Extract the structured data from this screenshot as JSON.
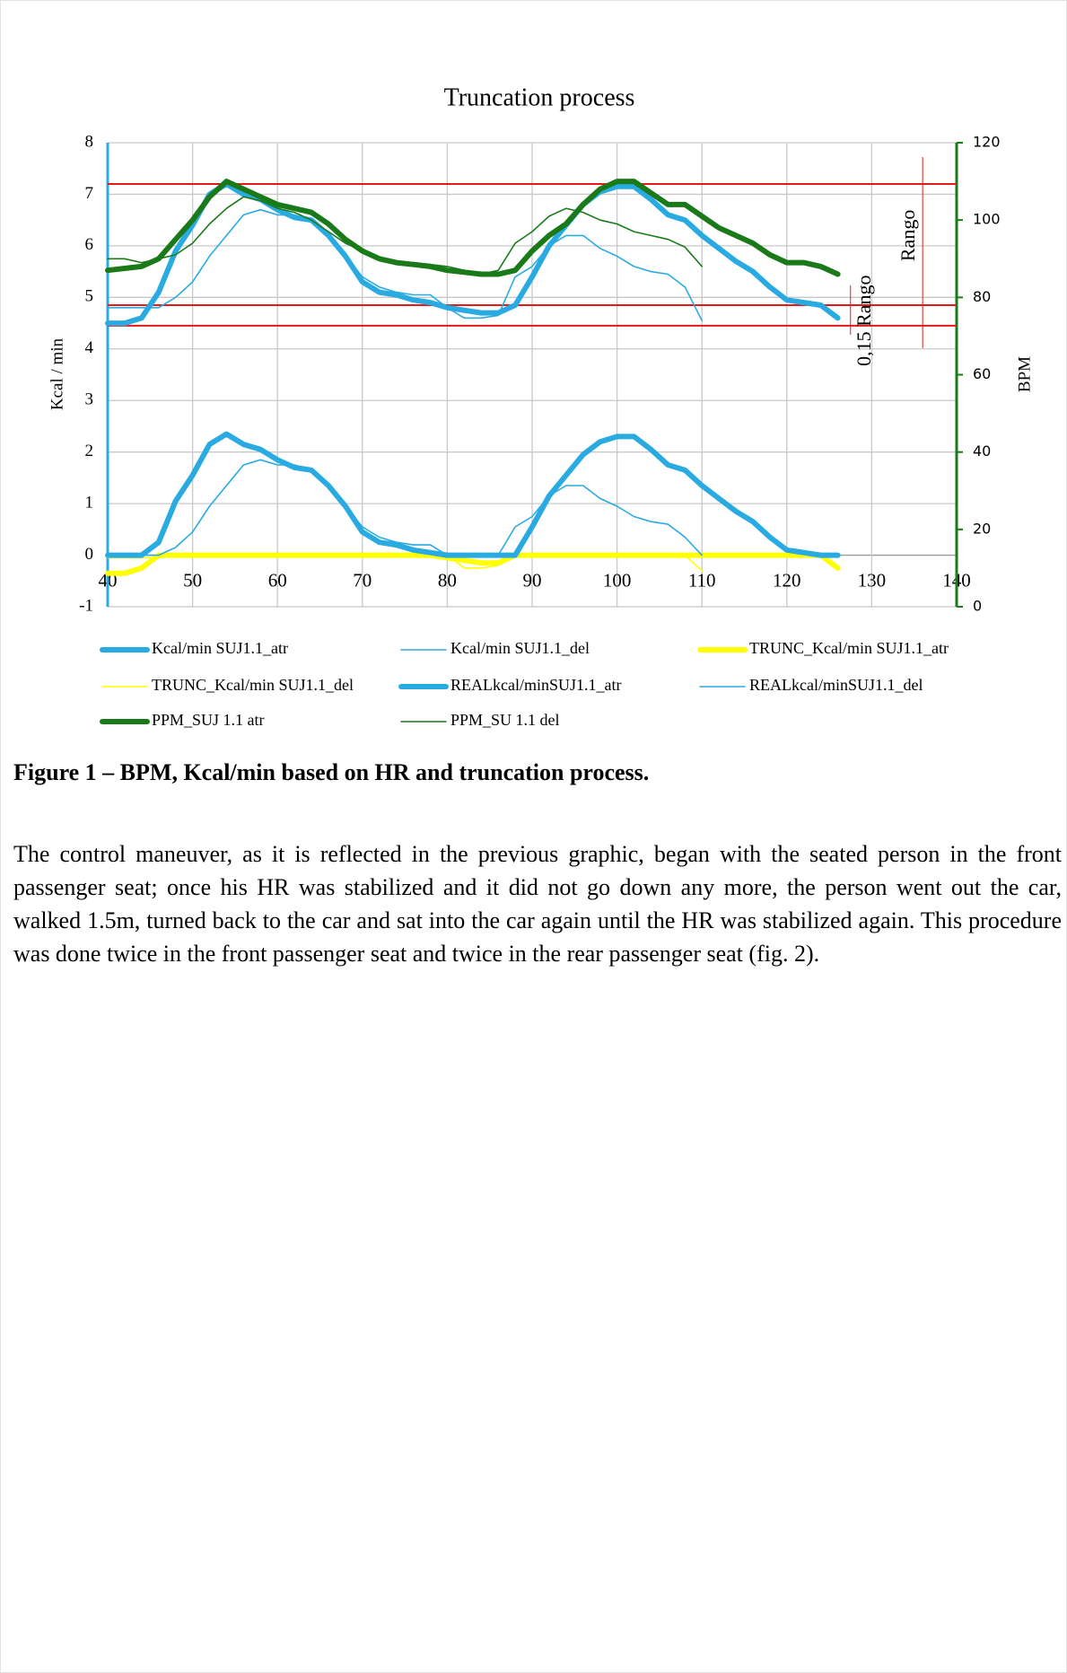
{
  "chart_data": {
    "type": "line",
    "title": "Truncation process",
    "y_label": "Kcal / min",
    "y2_label": "BPM",
    "xlim": [
      40,
      140
    ],
    "xticks": [
      40,
      50,
      60,
      70,
      80,
      90,
      100,
      110,
      120,
      130,
      140
    ],
    "ylim": [
      -1,
      8
    ],
    "yticks": [
      -1,
      0,
      1,
      2,
      3,
      4,
      5,
      6,
      7,
      8
    ],
    "y2lim": [
      0,
      120
    ],
    "y2ticks": [
      0,
      20,
      40,
      60,
      80,
      100,
      120
    ],
    "grid": true,
    "x": [
      40,
      42,
      44,
      46,
      48,
      50,
      52,
      54,
      56,
      58,
      60,
      62,
      64,
      66,
      68,
      70,
      72,
      74,
      76,
      78,
      80,
      82,
      84,
      86,
      88,
      90,
      92,
      94,
      96,
      98,
      100,
      102,
      104,
      106,
      108,
      110,
      112,
      114,
      116,
      118,
      120,
      122,
      124,
      126
    ],
    "series": [
      {
        "name": "Kcal/min SUJ1.1_atr",
        "color": "#29abe2",
        "weight": "thick",
        "values": [
          4.5,
          4.5,
          4.6,
          5.1,
          5.9,
          6.4,
          7.0,
          7.2,
          7.0,
          6.9,
          6.7,
          6.55,
          6.5,
          6.2,
          5.8,
          5.3,
          5.1,
          5.05,
          4.95,
          4.9,
          4.8,
          4.75,
          4.7,
          4.7,
          4.85,
          5.4,
          6.0,
          6.4,
          6.8,
          7.05,
          7.15,
          7.15,
          6.9,
          6.6,
          6.5,
          6.2,
          5.95,
          5.7,
          5.5,
          5.2,
          4.95,
          4.9,
          4.85,
          4.6
        ]
      },
      {
        "name": "Kcal/min SUJ1.1_del",
        "color": "#29abe2",
        "weight": "thin",
        "values": [
          4.8,
          4.8,
          4.8,
          4.8,
          5.0,
          5.3,
          5.8,
          6.2,
          6.6,
          6.7,
          6.6,
          6.6,
          6.5,
          6.2,
          5.8,
          5.4,
          5.2,
          5.1,
          5.05,
          5.05,
          4.8,
          4.6,
          4.6,
          4.65,
          5.4,
          5.6,
          6.0,
          6.2,
          6.2,
          5.95,
          5.8,
          5.6,
          5.5,
          5.45,
          5.2,
          4.55,
          null,
          null,
          null,
          null,
          null,
          null,
          null,
          null
        ]
      },
      {
        "name": "TRUNC_Kcal/min SUJ1.1_atr",
        "color": "#ffff00",
        "weight": "thick",
        "values": [
          -0.35,
          -0.35,
          -0.25,
          0,
          0,
          0,
          0,
          0,
          0,
          0,
          0,
          0,
          0,
          0,
          0,
          0,
          0,
          0,
          0,
          0,
          -0.05,
          -0.1,
          -0.15,
          -0.15,
          0,
          0,
          0,
          0,
          0,
          0,
          0,
          0,
          0,
          0,
          0,
          0,
          0,
          0,
          0,
          0,
          0,
          0,
          0,
          -0.25
        ]
      },
      {
        "name": "TRUNC_Kcal/min SUJ1.1_del",
        "color": "#ffff00",
        "weight": "thin",
        "values": [
          -0.05,
          -0.05,
          -0.05,
          -0.05,
          0,
          0,
          0,
          0,
          0,
          0,
          0,
          0,
          0,
          0,
          0,
          0,
          0,
          0,
          0,
          0,
          0,
          -0.25,
          -0.25,
          -0.2,
          0,
          0,
          0,
          0,
          0,
          0,
          0,
          0,
          0,
          0,
          0,
          -0.3,
          null,
          null,
          null,
          null,
          null,
          null,
          null,
          null
        ]
      },
      {
        "name": "REALkcal/minSUJ1.1_atr",
        "color": "#29abe2",
        "weight": "thick",
        "values": [
          0,
          0,
          0,
          0.25,
          1.05,
          1.55,
          2.15,
          2.35,
          2.15,
          2.05,
          1.85,
          1.7,
          1.65,
          1.35,
          0.95,
          0.45,
          0.25,
          0.2,
          0.1,
          0.05,
          0,
          0,
          0,
          0,
          0,
          0.55,
          1.15,
          1.55,
          1.95,
          2.2,
          2.3,
          2.3,
          2.05,
          1.75,
          1.65,
          1.35,
          1.1,
          0.85,
          0.65,
          0.35,
          0.1,
          0.05,
          0,
          0
        ]
      },
      {
        "name": "REALkcal/minSUJ1.1_del",
        "color": "#29abe2",
        "weight": "thin",
        "values": [
          0,
          0,
          0,
          0,
          0.15,
          0.45,
          0.95,
          1.35,
          1.75,
          1.85,
          1.75,
          1.75,
          1.65,
          1.35,
          0.95,
          0.55,
          0.35,
          0.25,
          0.2,
          0.2,
          0,
          0,
          0,
          0,
          0.55,
          0.75,
          1.15,
          1.35,
          1.35,
          1.1,
          0.95,
          0.75,
          0.65,
          0.6,
          0.35,
          0,
          null,
          null,
          null,
          null,
          null,
          null,
          null,
          null
        ]
      },
      {
        "name": "PPM_SUJ 1.1 atr",
        "color": "#1a7a1a",
        "weight": "thick",
        "axis": "y2",
        "values": [
          87,
          87.5,
          88,
          90,
          95,
          100,
          106,
          110,
          108,
          106,
          104,
          103,
          102,
          99,
          95,
          92,
          90,
          89,
          88.5,
          88,
          87,
          86.5,
          86,
          86,
          87,
          92,
          96,
          99,
          104,
          108,
          110,
          110,
          107,
          104,
          104,
          101,
          98,
          96,
          94,
          91,
          89,
          89,
          88,
          86
        ]
      },
      {
        "name": "PPM_SU 1.1 del",
        "color": "#1a7a1a",
        "weight": "thin",
        "axis": "y2",
        "values": [
          90,
          90,
          89,
          90,
          91,
          94,
          99,
          103,
          106,
          105,
          103,
          102,
          100,
          97,
          94,
          92,
          90,
          89,
          89,
          88.5,
          88,
          87,
          86,
          87,
          94,
          97,
          101,
          103,
          102,
          100,
          99,
          97,
          96,
          95,
          93,
          88,
          null,
          null,
          null,
          null,
          null,
          null,
          null,
          null
        ]
      }
    ],
    "hlines": [
      7.2,
      4.85,
      4.45
    ],
    "hline_color": "#e41a1a",
    "annotations": [
      "Rango",
      "0,15 Rango"
    ]
  },
  "caption": "Figure 1 – BPM, Kcal/min based on HR and truncation process.",
  "paragraph": "The control maneuver, as it is reflected in the previous graphic, began with the seated person in the front passenger seat; once his HR was stabilized and it did not go down any more, the person went out the car, walked 1.5m, turned back to the car and sat into the car again until the HR was stabilized again. This procedure was done twice in the front passenger seat and twice in the rear passenger seat (fig. 2)."
}
